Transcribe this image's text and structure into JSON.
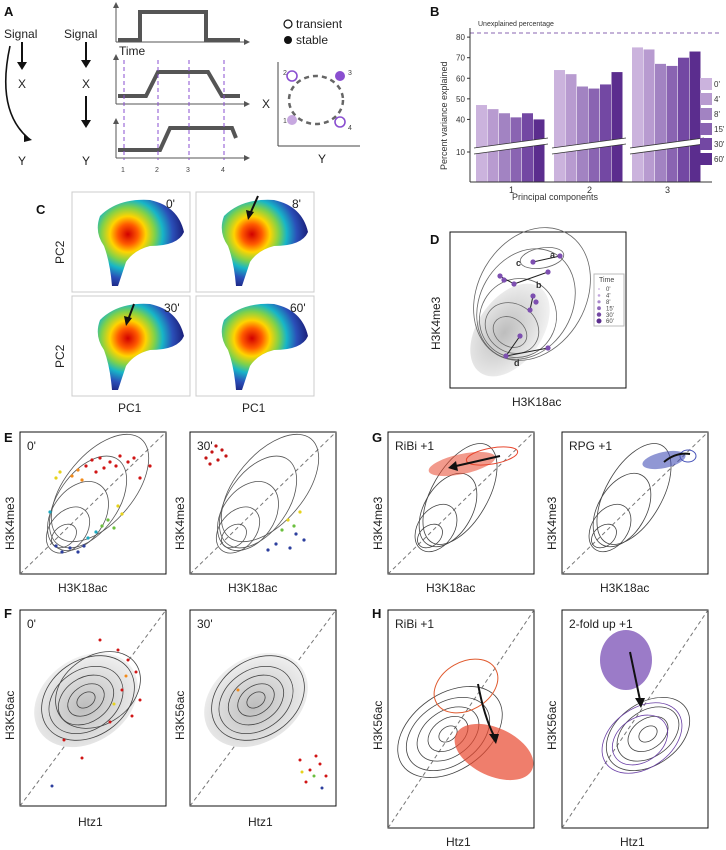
{
  "panels": {
    "a": {
      "label": "A",
      "signal1": "Signal",
      "signal2": "Signal",
      "x1": "X",
      "y1": "Y",
      "x2": "X",
      "y2": "Y",
      "time": "Time",
      "ticks": [
        "1",
        "2",
        "3",
        "4"
      ],
      "legend_transient": "transient",
      "legend_stable": "stable",
      "state_axis_x": "X",
      "state_axis_y": "Y",
      "states": [
        "1",
        "2",
        "3",
        "4"
      ]
    },
    "b": {
      "label": "B",
      "unexplained": "Unexplained percentage"
    },
    "c": {
      "label": "C",
      "t0": "0'",
      "t8": "8'",
      "t30": "30'",
      "t60": "60'",
      "xlabel": "PC1",
      "ylabel": "PC2"
    },
    "d": {
      "label": "D",
      "xlabel": "H3K18ac",
      "ylabel": "H3K4me3",
      "legend_title": "Time",
      "legend": [
        "0'",
        "4'",
        "8'",
        "15'",
        "30'",
        "60'"
      ],
      "points": [
        "a",
        "b",
        "c",
        "d"
      ]
    },
    "e": {
      "label": "E",
      "left_tag": "0'",
      "right_tag": "30'",
      "xlabel": "H3K18ac",
      "ylabel": "H3K4me3"
    },
    "f": {
      "label": "F",
      "left_tag": "0'",
      "right_tag": "30'",
      "xlabel": "Htz1",
      "ylabel": "H3K56ac"
    },
    "g": {
      "label": "G",
      "left_tag": "RiBi +1",
      "right_tag": "RPG +1",
      "xlabel": "H3K18ac",
      "ylabel": "H3K4me3"
    },
    "h": {
      "label": "H",
      "left_tag": "RiBi +1",
      "right_tag": "2-fold up +1",
      "xlabel": "Htz1",
      "ylabel": "H3K56ac"
    }
  },
  "chart_data": {
    "type": "bar",
    "title": "",
    "xlabel": "Principal components",
    "ylabel": "Percent variance explained",
    "categories": [
      "1",
      "2",
      "3"
    ],
    "ylim": [
      0,
      82
    ],
    "yticks": [
      "10",
      "40",
      "50",
      "60",
      "70",
      "80"
    ],
    "series": [
      {
        "name": "0'",
        "values": [
          47,
          64,
          75
        ],
        "color": "#cbb3dd"
      },
      {
        "name": "4'",
        "values": [
          45,
          62,
          74
        ],
        "color": "#b89bd0"
      },
      {
        "name": "8'",
        "values": [
          43,
          56,
          67
        ],
        "color": "#a283c2"
      },
      {
        "name": "15'",
        "values": [
          41,
          55,
          66
        ],
        "color": "#8a64b2"
      },
      {
        "name": "30'",
        "values": [
          43,
          57,
          70
        ],
        "color": "#7348a3"
      },
      {
        "name": "60'",
        "values": [
          40,
          63,
          73
        ],
        "color": "#5b2d8e"
      }
    ],
    "reference_line": 82
  }
}
